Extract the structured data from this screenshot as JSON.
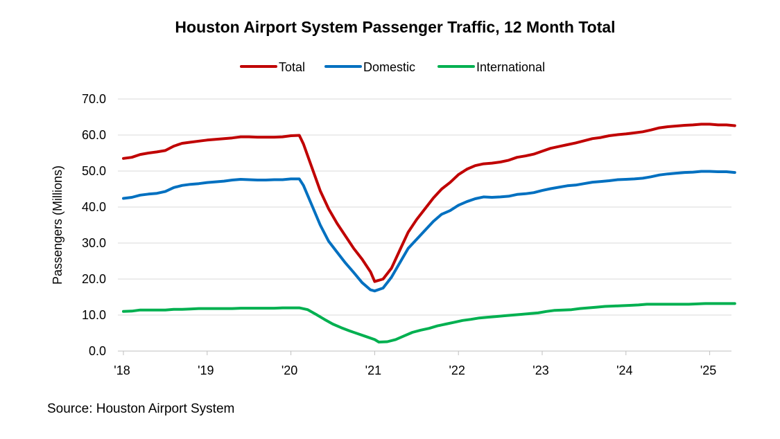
{
  "chart_data": {
    "type": "line",
    "title": "Houston Airport System Passenger Traffic, 12 Month Total",
    "ylabel": "Passengers (Millions)",
    "xlabel": "",
    "ylim": [
      0,
      70
    ],
    "yticks": [
      "0.0",
      "10.0",
      "20.0",
      "30.0",
      "40.0",
      "50.0",
      "60.0",
      "70.0"
    ],
    "xlim": [
      2018,
      2025.3
    ],
    "xticks": [
      {
        "x": 2018,
        "label": "'18"
      },
      {
        "x": 2019,
        "label": "'19"
      },
      {
        "x": 2020,
        "label": "'20"
      },
      {
        "x": 2021,
        "label": "'21"
      },
      {
        "x": 2022,
        "label": "'22"
      },
      {
        "x": 2023,
        "label": "'23"
      },
      {
        "x": 2024,
        "label": "'24"
      },
      {
        "x": 2025,
        "label": "'25"
      }
    ],
    "grid": "horizontal",
    "legend_position": "top",
    "series": [
      {
        "name": "Total",
        "color": "#c00000",
        "points": [
          [
            2018.0,
            53.5
          ],
          [
            2018.1,
            53.8
          ],
          [
            2018.2,
            54.6
          ],
          [
            2018.3,
            55.0
          ],
          [
            2018.4,
            55.3
          ],
          [
            2018.5,
            55.7
          ],
          [
            2018.6,
            56.9
          ],
          [
            2018.7,
            57.7
          ],
          [
            2018.8,
            58.0
          ],
          [
            2018.9,
            58.3
          ],
          [
            2019.0,
            58.6
          ],
          [
            2019.1,
            58.8
          ],
          [
            2019.2,
            59.0
          ],
          [
            2019.3,
            59.2
          ],
          [
            2019.4,
            59.5
          ],
          [
            2019.5,
            59.5
          ],
          [
            2019.6,
            59.4
          ],
          [
            2019.7,
            59.4
          ],
          [
            2019.8,
            59.4
          ],
          [
            2019.9,
            59.5
          ],
          [
            2020.0,
            59.8
          ],
          [
            2020.1,
            59.9
          ],
          [
            2020.15,
            57.5
          ],
          [
            2020.25,
            51.0
          ],
          [
            2020.35,
            44.5
          ],
          [
            2020.45,
            39.5
          ],
          [
            2020.55,
            35.5
          ],
          [
            2020.65,
            32.0
          ],
          [
            2020.75,
            28.5
          ],
          [
            2020.85,
            25.5
          ],
          [
            2020.95,
            22.0
          ],
          [
            2021.0,
            19.3
          ],
          [
            2021.1,
            20.0
          ],
          [
            2021.2,
            23.0
          ],
          [
            2021.3,
            28.0
          ],
          [
            2021.4,
            33.0
          ],
          [
            2021.5,
            36.5
          ],
          [
            2021.6,
            39.5
          ],
          [
            2021.7,
            42.5
          ],
          [
            2021.8,
            45.0
          ],
          [
            2021.9,
            46.8
          ],
          [
            2022.0,
            49.0
          ],
          [
            2022.1,
            50.5
          ],
          [
            2022.2,
            51.5
          ],
          [
            2022.3,
            52.0
          ],
          [
            2022.4,
            52.2
          ],
          [
            2022.5,
            52.5
          ],
          [
            2022.6,
            53.0
          ],
          [
            2022.7,
            53.8
          ],
          [
            2022.8,
            54.2
          ],
          [
            2022.9,
            54.7
          ],
          [
            2023.0,
            55.5
          ],
          [
            2023.1,
            56.3
          ],
          [
            2023.2,
            56.8
          ],
          [
            2023.3,
            57.3
          ],
          [
            2023.4,
            57.8
          ],
          [
            2023.5,
            58.4
          ],
          [
            2023.6,
            59.0
          ],
          [
            2023.7,
            59.3
          ],
          [
            2023.8,
            59.8
          ],
          [
            2023.9,
            60.1
          ],
          [
            2024.0,
            60.3
          ],
          [
            2024.1,
            60.6
          ],
          [
            2024.2,
            60.9
          ],
          [
            2024.3,
            61.4
          ],
          [
            2024.4,
            62.0
          ],
          [
            2024.5,
            62.3
          ],
          [
            2024.6,
            62.5
          ],
          [
            2024.7,
            62.7
          ],
          [
            2024.8,
            62.8
          ],
          [
            2024.9,
            63.0
          ],
          [
            2025.0,
            63.0
          ],
          [
            2025.1,
            62.8
          ],
          [
            2025.2,
            62.8
          ],
          [
            2025.3,
            62.6
          ]
        ]
      },
      {
        "name": "Domestic",
        "color": "#0070c0",
        "points": [
          [
            2018.0,
            42.4
          ],
          [
            2018.1,
            42.7
          ],
          [
            2018.2,
            43.3
          ],
          [
            2018.3,
            43.6
          ],
          [
            2018.4,
            43.8
          ],
          [
            2018.5,
            44.3
          ],
          [
            2018.6,
            45.4
          ],
          [
            2018.7,
            46.0
          ],
          [
            2018.8,
            46.3
          ],
          [
            2018.9,
            46.5
          ],
          [
            2019.0,
            46.8
          ],
          [
            2019.1,
            47.0
          ],
          [
            2019.2,
            47.2
          ],
          [
            2019.3,
            47.5
          ],
          [
            2019.4,
            47.7
          ],
          [
            2019.5,
            47.6
          ],
          [
            2019.6,
            47.5
          ],
          [
            2019.7,
            47.5
          ],
          [
            2019.8,
            47.6
          ],
          [
            2019.9,
            47.6
          ],
          [
            2020.0,
            47.8
          ],
          [
            2020.1,
            47.8
          ],
          [
            2020.15,
            46.0
          ],
          [
            2020.25,
            40.5
          ],
          [
            2020.35,
            35.0
          ],
          [
            2020.45,
            30.5
          ],
          [
            2020.55,
            27.5
          ],
          [
            2020.65,
            24.5
          ],
          [
            2020.75,
            21.8
          ],
          [
            2020.85,
            19.0
          ],
          [
            2020.95,
            17.0
          ],
          [
            2021.0,
            16.7
          ],
          [
            2021.1,
            17.5
          ],
          [
            2021.2,
            20.5
          ],
          [
            2021.3,
            24.5
          ],
          [
            2021.4,
            28.5
          ],
          [
            2021.5,
            31.0
          ],
          [
            2021.6,
            33.5
          ],
          [
            2021.7,
            36.0
          ],
          [
            2021.8,
            38.0
          ],
          [
            2021.9,
            39.0
          ],
          [
            2022.0,
            40.5
          ],
          [
            2022.1,
            41.5
          ],
          [
            2022.2,
            42.3
          ],
          [
            2022.3,
            42.8
          ],
          [
            2022.4,
            42.7
          ],
          [
            2022.5,
            42.8
          ],
          [
            2022.6,
            43.0
          ],
          [
            2022.7,
            43.5
          ],
          [
            2022.8,
            43.7
          ],
          [
            2022.9,
            44.0
          ],
          [
            2023.0,
            44.6
          ],
          [
            2023.1,
            45.1
          ],
          [
            2023.2,
            45.5
          ],
          [
            2023.3,
            45.9
          ],
          [
            2023.4,
            46.1
          ],
          [
            2023.5,
            46.5
          ],
          [
            2023.6,
            46.9
          ],
          [
            2023.7,
            47.1
          ],
          [
            2023.8,
            47.3
          ],
          [
            2023.9,
            47.6
          ],
          [
            2024.0,
            47.7
          ],
          [
            2024.1,
            47.8
          ],
          [
            2024.2,
            48.0
          ],
          [
            2024.3,
            48.4
          ],
          [
            2024.4,
            48.9
          ],
          [
            2024.5,
            49.2
          ],
          [
            2024.6,
            49.4
          ],
          [
            2024.7,
            49.6
          ],
          [
            2024.8,
            49.7
          ],
          [
            2024.9,
            49.9
          ],
          [
            2025.0,
            49.9
          ],
          [
            2025.1,
            49.8
          ],
          [
            2025.2,
            49.8
          ],
          [
            2025.3,
            49.6
          ]
        ]
      },
      {
        "name": "International",
        "color": "#00b050",
        "points": [
          [
            2018.0,
            11.0
          ],
          [
            2018.1,
            11.1
          ],
          [
            2018.2,
            11.4
          ],
          [
            2018.3,
            11.4
          ],
          [
            2018.4,
            11.4
          ],
          [
            2018.5,
            11.4
          ],
          [
            2018.6,
            11.6
          ],
          [
            2018.7,
            11.6
          ],
          [
            2018.8,
            11.7
          ],
          [
            2018.9,
            11.8
          ],
          [
            2019.0,
            11.8
          ],
          [
            2019.1,
            11.8
          ],
          [
            2019.2,
            11.8
          ],
          [
            2019.3,
            11.8
          ],
          [
            2019.4,
            11.9
          ],
          [
            2019.5,
            11.9
          ],
          [
            2019.6,
            11.9
          ],
          [
            2019.7,
            11.9
          ],
          [
            2019.8,
            11.9
          ],
          [
            2019.9,
            12.0
          ],
          [
            2020.0,
            12.0
          ],
          [
            2020.1,
            12.0
          ],
          [
            2020.2,
            11.5
          ],
          [
            2020.3,
            10.2
          ],
          [
            2020.4,
            8.8
          ],
          [
            2020.5,
            7.5
          ],
          [
            2020.6,
            6.5
          ],
          [
            2020.7,
            5.6
          ],
          [
            2020.8,
            4.8
          ],
          [
            2020.9,
            4.0
          ],
          [
            2021.0,
            3.2
          ],
          [
            2021.05,
            2.5
          ],
          [
            2021.15,
            2.6
          ],
          [
            2021.25,
            3.2
          ],
          [
            2021.35,
            4.2
          ],
          [
            2021.45,
            5.2
          ],
          [
            2021.55,
            5.8
          ],
          [
            2021.65,
            6.3
          ],
          [
            2021.75,
            7.0
          ],
          [
            2021.85,
            7.5
          ],
          [
            2021.95,
            8.0
          ],
          [
            2022.05,
            8.5
          ],
          [
            2022.15,
            8.8
          ],
          [
            2022.25,
            9.2
          ],
          [
            2022.35,
            9.4
          ],
          [
            2022.45,
            9.6
          ],
          [
            2022.55,
            9.8
          ],
          [
            2022.65,
            10.0
          ],
          [
            2022.75,
            10.2
          ],
          [
            2022.85,
            10.4
          ],
          [
            2022.95,
            10.6
          ],
          [
            2023.05,
            11.0
          ],
          [
            2023.15,
            11.3
          ],
          [
            2023.25,
            11.4
          ],
          [
            2023.35,
            11.5
          ],
          [
            2023.45,
            11.8
          ],
          [
            2023.55,
            12.0
          ],
          [
            2023.65,
            12.2
          ],
          [
            2023.75,
            12.4
          ],
          [
            2023.85,
            12.5
          ],
          [
            2023.95,
            12.6
          ],
          [
            2024.05,
            12.7
          ],
          [
            2024.15,
            12.8
          ],
          [
            2024.25,
            13.0
          ],
          [
            2024.35,
            13.0
          ],
          [
            2024.45,
            13.0
          ],
          [
            2024.55,
            13.0
          ],
          [
            2024.65,
            13.0
          ],
          [
            2024.75,
            13.0
          ],
          [
            2024.85,
            13.1
          ],
          [
            2024.95,
            13.2
          ],
          [
            2025.05,
            13.2
          ],
          [
            2025.15,
            13.2
          ],
          [
            2025.3,
            13.2
          ]
        ]
      }
    ]
  },
  "source": "Source: Houston Airport System"
}
